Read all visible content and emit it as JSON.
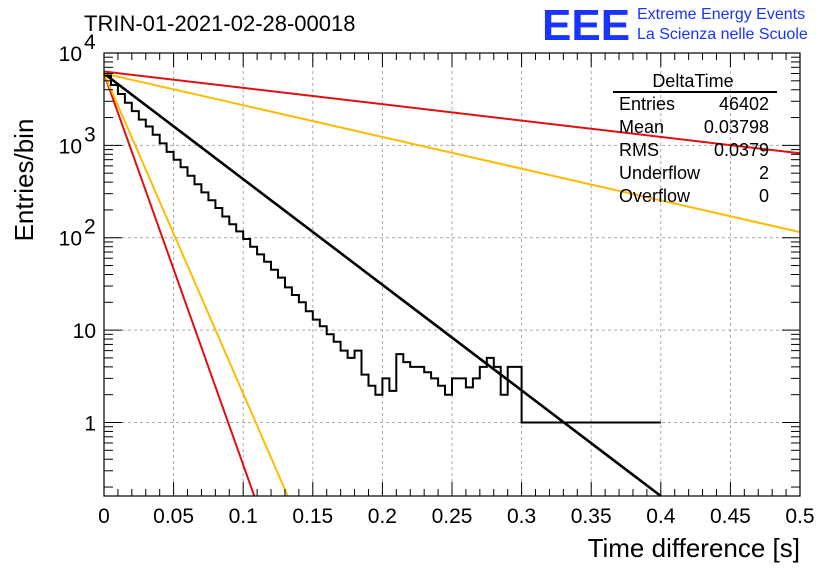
{
  "header": {
    "run_title": "TRIN-01-2021-02-28-00018",
    "logo_mark": "EEE",
    "logo_line1": "Extreme Energy Events",
    "logo_line2": "La Scienza nelle Scuole",
    "logo_color": "#1a33ff"
  },
  "stats_box": {
    "name": "DeltaTime",
    "rows": [
      {
        "label": "Entries",
        "value": "46402"
      },
      {
        "label": "Mean",
        "value": "0.03798"
      },
      {
        "label": "RMS",
        "value": "0.0379"
      },
      {
        "label": "Underflow",
        "value": "2"
      },
      {
        "label": "Overflow",
        "value": "0"
      }
    ]
  },
  "chart_data": {
    "type": "line",
    "title": "TRIN-01-2021-02-28-00018",
    "xlabel": "Time difference [s]",
    "ylabel": "Entries/bin",
    "xlim": [
      0,
      0.5
    ],
    "ylim": [
      0.16,
      10000
    ],
    "yscale": "log",
    "grid": true,
    "x_ticks": [
      {
        "value": 0,
        "label": "0"
      },
      {
        "value": 0.05,
        "label": "0.05"
      },
      {
        "value": 0.1,
        "label": "0.1"
      },
      {
        "value": 0.15,
        "label": "0.15"
      },
      {
        "value": 0.2,
        "label": "0.2"
      },
      {
        "value": 0.25,
        "label": "0.25"
      },
      {
        "value": 0.3,
        "label": "0.3"
      },
      {
        "value": 0.35,
        "label": "0.35"
      },
      {
        "value": 0.4,
        "label": "0.4"
      },
      {
        "value": 0.45,
        "label": "0.45"
      },
      {
        "value": 0.5,
        "label": "0.5"
      }
    ],
    "y_ticks": [
      {
        "value": 1,
        "mantissa": "1",
        "exp": ""
      },
      {
        "value": 10,
        "mantissa": "10",
        "exp": ""
      },
      {
        "value": 100,
        "mantissa": "10",
        "exp": "2"
      },
      {
        "value": 1000,
        "mantissa": "10",
        "exp": "3"
      },
      {
        "value": 10000,
        "mantissa": "10",
        "exp": "4"
      }
    ],
    "histogram": {
      "name": "DeltaTime",
      "color": "#000000",
      "bin_width": 0.005,
      "counts": [
        5700,
        4500,
        3600,
        2900,
        2350,
        1900,
        1600,
        1300,
        1050,
        850,
        700,
        580,
        470,
        380,
        310,
        255,
        210,
        170,
        140,
        117,
        97,
        80,
        66,
        55,
        45,
        37,
        29,
        24,
        20,
        16,
        13,
        11,
        9,
        7.5,
        6,
        5,
        6,
        3.3,
        2.5,
        2,
        3,
        2.2,
        5.5,
        4.5,
        4,
        4,
        3.5,
        3,
        2.5,
        2,
        3,
        3,
        2.4,
        3,
        4,
        5,
        4,
        2,
        4,
        4,
        1,
        1,
        1,
        1,
        1,
        1,
        1,
        1,
        1,
        1,
        1,
        1,
        1,
        1,
        1,
        1,
        1,
        1,
        1,
        1
      ]
    },
    "series": [
      {
        "color": "#000000",
        "x": [
          0,
          0.4
        ],
        "y": [
          6000,
          0.16
        ]
      },
      {
        "color": "#dd1111",
        "x": [
          0,
          0.5
        ],
        "y": [
          6300,
          820
        ]
      },
      {
        "color": "#ffbb00",
        "x": [
          0,
          0.5
        ],
        "y": [
          6000,
          115
        ]
      },
      {
        "color": "#dd1111",
        "x": [
          0,
          0.108
        ],
        "y": [
          6000,
          0.16
        ]
      },
      {
        "color": "#ffbb00",
        "x": [
          0,
          0.132
        ],
        "y": [
          6000,
          0.16
        ]
      }
    ]
  }
}
